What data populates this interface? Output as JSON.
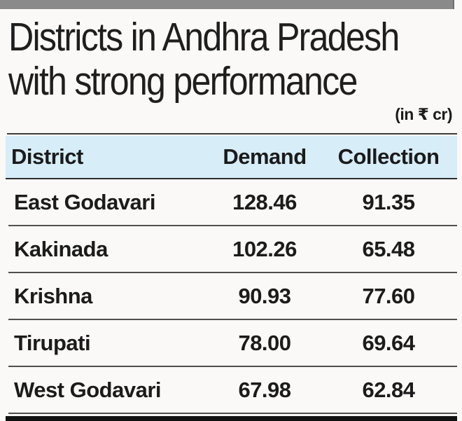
{
  "page": {
    "title_line1": "Districts in Andhra Pradesh",
    "title_line2": "with strong performance",
    "unit_note": "(in ₹ cr)"
  },
  "table": {
    "header": {
      "district": "District",
      "demand": "Demand",
      "collection": "Collection"
    },
    "rows": [
      {
        "district": "East Godavari",
        "demand": "128.46",
        "collection": "91.35"
      },
      {
        "district": "Kakinada",
        "demand": "102.26",
        "collection": "65.48"
      },
      {
        "district": "Krishna",
        "demand": "90.93",
        "collection": "77.60"
      },
      {
        "district": "Tirupati",
        "demand": "78.00",
        "collection": "69.64"
      },
      {
        "district": "West Godavari",
        "demand": "67.98",
        "collection": "62.84"
      }
    ]
  },
  "chart_data": {
    "type": "table",
    "title": "Districts in Andhra Pradesh with strong performance",
    "unit": "in ₹ cr",
    "columns": [
      "District",
      "Demand",
      "Collection"
    ],
    "rows": [
      [
        "East Godavari",
        128.46,
        91.35
      ],
      [
        "Kakinada",
        102.26,
        65.48
      ],
      [
        "Krishna",
        90.93,
        77.6
      ],
      [
        "Tirupati",
        78.0,
        69.64
      ],
      [
        "West Godavari",
        67.98,
        62.84
      ]
    ]
  },
  "colors": {
    "top_bar": "#8a8a8a",
    "header_bg": "#d7edf8",
    "rule": "#3c3c3c",
    "bottom_bar": "#111111",
    "text": "#1b1b1b",
    "background": "#faf9f7"
  }
}
